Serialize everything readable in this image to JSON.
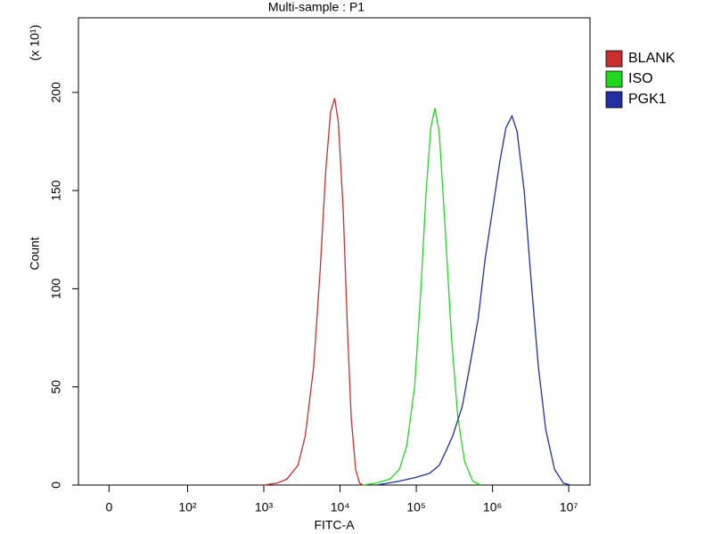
{
  "chart_data": {
    "type": "line",
    "title": "Multi-sample : P1",
    "x_label": "FITC-A",
    "y_label": "Count",
    "y_multiplier": "(x 10¹)",
    "xscale": "biexponential",
    "xlim": [
      -39,
      19000000
    ],
    "xticks": [
      0,
      {
        "value": 100,
        "label": "10²"
      },
      {
        "value": 1000,
        "label": "10³"
      },
      {
        "value": 10000,
        "label": "10⁴"
      },
      {
        "value": 100000,
        "label": "10⁵"
      },
      {
        "value": 1000000,
        "label": "10⁶"
      },
      {
        "value": 10000000,
        "label": "10⁷"
      }
    ],
    "ylim": [
      0,
      238
    ],
    "yticks": [
      0,
      50,
      100,
      150,
      200
    ],
    "legend_position": "right",
    "series": [
      {
        "name": "BLANK",
        "color": "#c83030",
        "x": [
          1000,
          1500,
          2000,
          2800,
          3500,
          4500,
          5500,
          6500,
          7500,
          8500,
          9500,
          11000,
          12500,
          14000,
          16000,
          18000,
          20000
        ],
        "values": [
          0,
          1,
          3,
          10,
          25,
          60,
          110,
          160,
          190,
          197,
          185,
          140,
          80,
          35,
          8,
          1,
          0
        ]
      },
      {
        "name": "ISO",
        "color": "#20d820",
        "x": [
          20000,
          30000,
          45000,
          60000,
          75000,
          95000,
          115000,
          135000,
          155000,
          175000,
          200000,
          240000,
          290000,
          350000,
          430000,
          550000,
          700000
        ],
        "values": [
          0,
          1,
          3,
          8,
          20,
          50,
          100,
          150,
          182,
          192,
          180,
          130,
          75,
          35,
          12,
          2,
          0
        ]
      },
      {
        "name": "PGK1",
        "color": "#2030a0",
        "x": [
          30000,
          60000,
          100000,
          150000,
          200000,
          250000,
          300000,
          400000,
          500000,
          650000,
          800000,
          1000000,
          1250000,
          1500000,
          1800000,
          2100000,
          2600000,
          3200000,
          4000000,
          5000000,
          6500000,
          8500000,
          10500000
        ],
        "values": [
          0,
          2,
          4,
          6,
          10,
          18,
          25,
          40,
          60,
          85,
          115,
          140,
          165,
          182,
          188,
          180,
          150,
          105,
          60,
          28,
          8,
          1,
          0
        ]
      }
    ]
  }
}
